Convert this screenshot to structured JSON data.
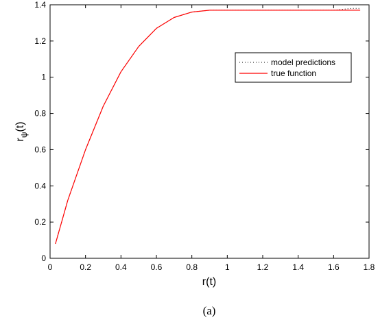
{
  "chart_data": {
    "type": "line",
    "title": "",
    "xlabel": "r(t)",
    "ylabel_main": "r",
    "ylabel_sub": "ψ",
    "ylabel_tail": "(t)",
    "xlim": [
      0,
      1.8
    ],
    "ylim": [
      0,
      1.4
    ],
    "xticks": [
      "0",
      "0.2",
      "0.4",
      "0.6",
      "0.8",
      "1",
      "1.2",
      "1.4",
      "1.6",
      "1.8"
    ],
    "yticks": [
      "0",
      "0.2",
      "0.4",
      "0.6",
      "0.8",
      "1",
      "1.2",
      "1.4"
    ],
    "grid": false,
    "legend_position": "upper-right",
    "series": [
      {
        "name": "model predictions",
        "style": "dotted",
        "color": "#000000",
        "x": [
          0.03,
          0.1,
          0.2,
          0.3,
          0.4,
          0.5,
          0.6,
          0.7,
          0.8,
          0.9,
          1.0,
          1.1,
          1.2,
          1.3,
          1.4,
          1.5,
          1.6,
          1.7,
          1.75
        ],
        "y": [
          0.08,
          0.32,
          0.6,
          0.84,
          1.03,
          1.17,
          1.27,
          1.33,
          1.36,
          1.37,
          1.37,
          1.37,
          1.37,
          1.37,
          1.37,
          1.37,
          1.37,
          1.38,
          1.38
        ]
      },
      {
        "name": "true function",
        "style": "solid",
        "color": "#ff0000",
        "x": [
          0.03,
          0.1,
          0.2,
          0.3,
          0.4,
          0.5,
          0.6,
          0.7,
          0.8,
          0.9,
          1.0,
          1.1,
          1.2,
          1.3,
          1.4,
          1.5,
          1.6,
          1.7,
          1.75
        ],
        "y": [
          0.08,
          0.32,
          0.6,
          0.84,
          1.03,
          1.17,
          1.27,
          1.33,
          1.36,
          1.37,
          1.37,
          1.37,
          1.37,
          1.37,
          1.37,
          1.37,
          1.37,
          1.37,
          1.37
        ]
      }
    ]
  },
  "caption": "(a)"
}
